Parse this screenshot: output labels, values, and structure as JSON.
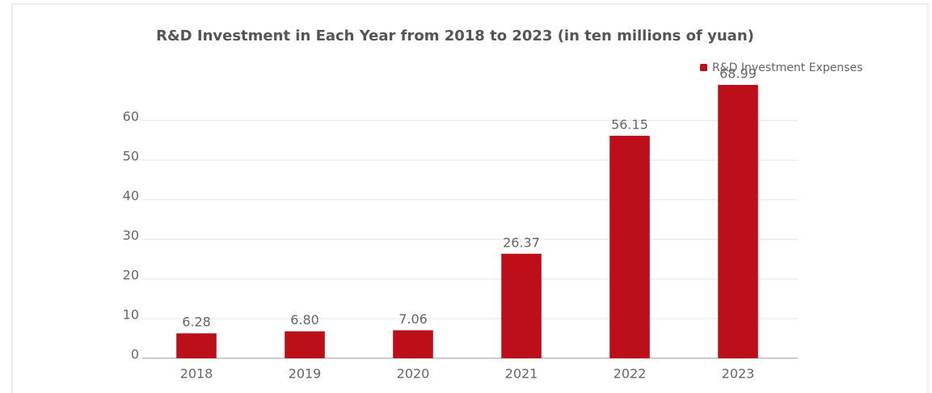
{
  "chart_data": {
    "type": "bar",
    "title": "R&D Investment in Each Year from 2018 to 2023 (in ten millions of yuan)",
    "categories": [
      "2018",
      "2019",
      "2020",
      "2021",
      "2022",
      "2023"
    ],
    "series": [
      {
        "name": "R&D Investment Expenses",
        "color": "#bd0f1a",
        "values": [
          6.28,
          6.8,
          7.06,
          26.37,
          56.15,
          68.99
        ],
        "value_labels": [
          "6.28",
          "6.80",
          "7.06",
          "26.37",
          "56.15",
          "68.99"
        ]
      }
    ],
    "ylim": [
      0,
      70
    ],
    "yticks": [
      0,
      10,
      20,
      30,
      40,
      50,
      60
    ],
    "grid": true,
    "legend": "top-right"
  }
}
